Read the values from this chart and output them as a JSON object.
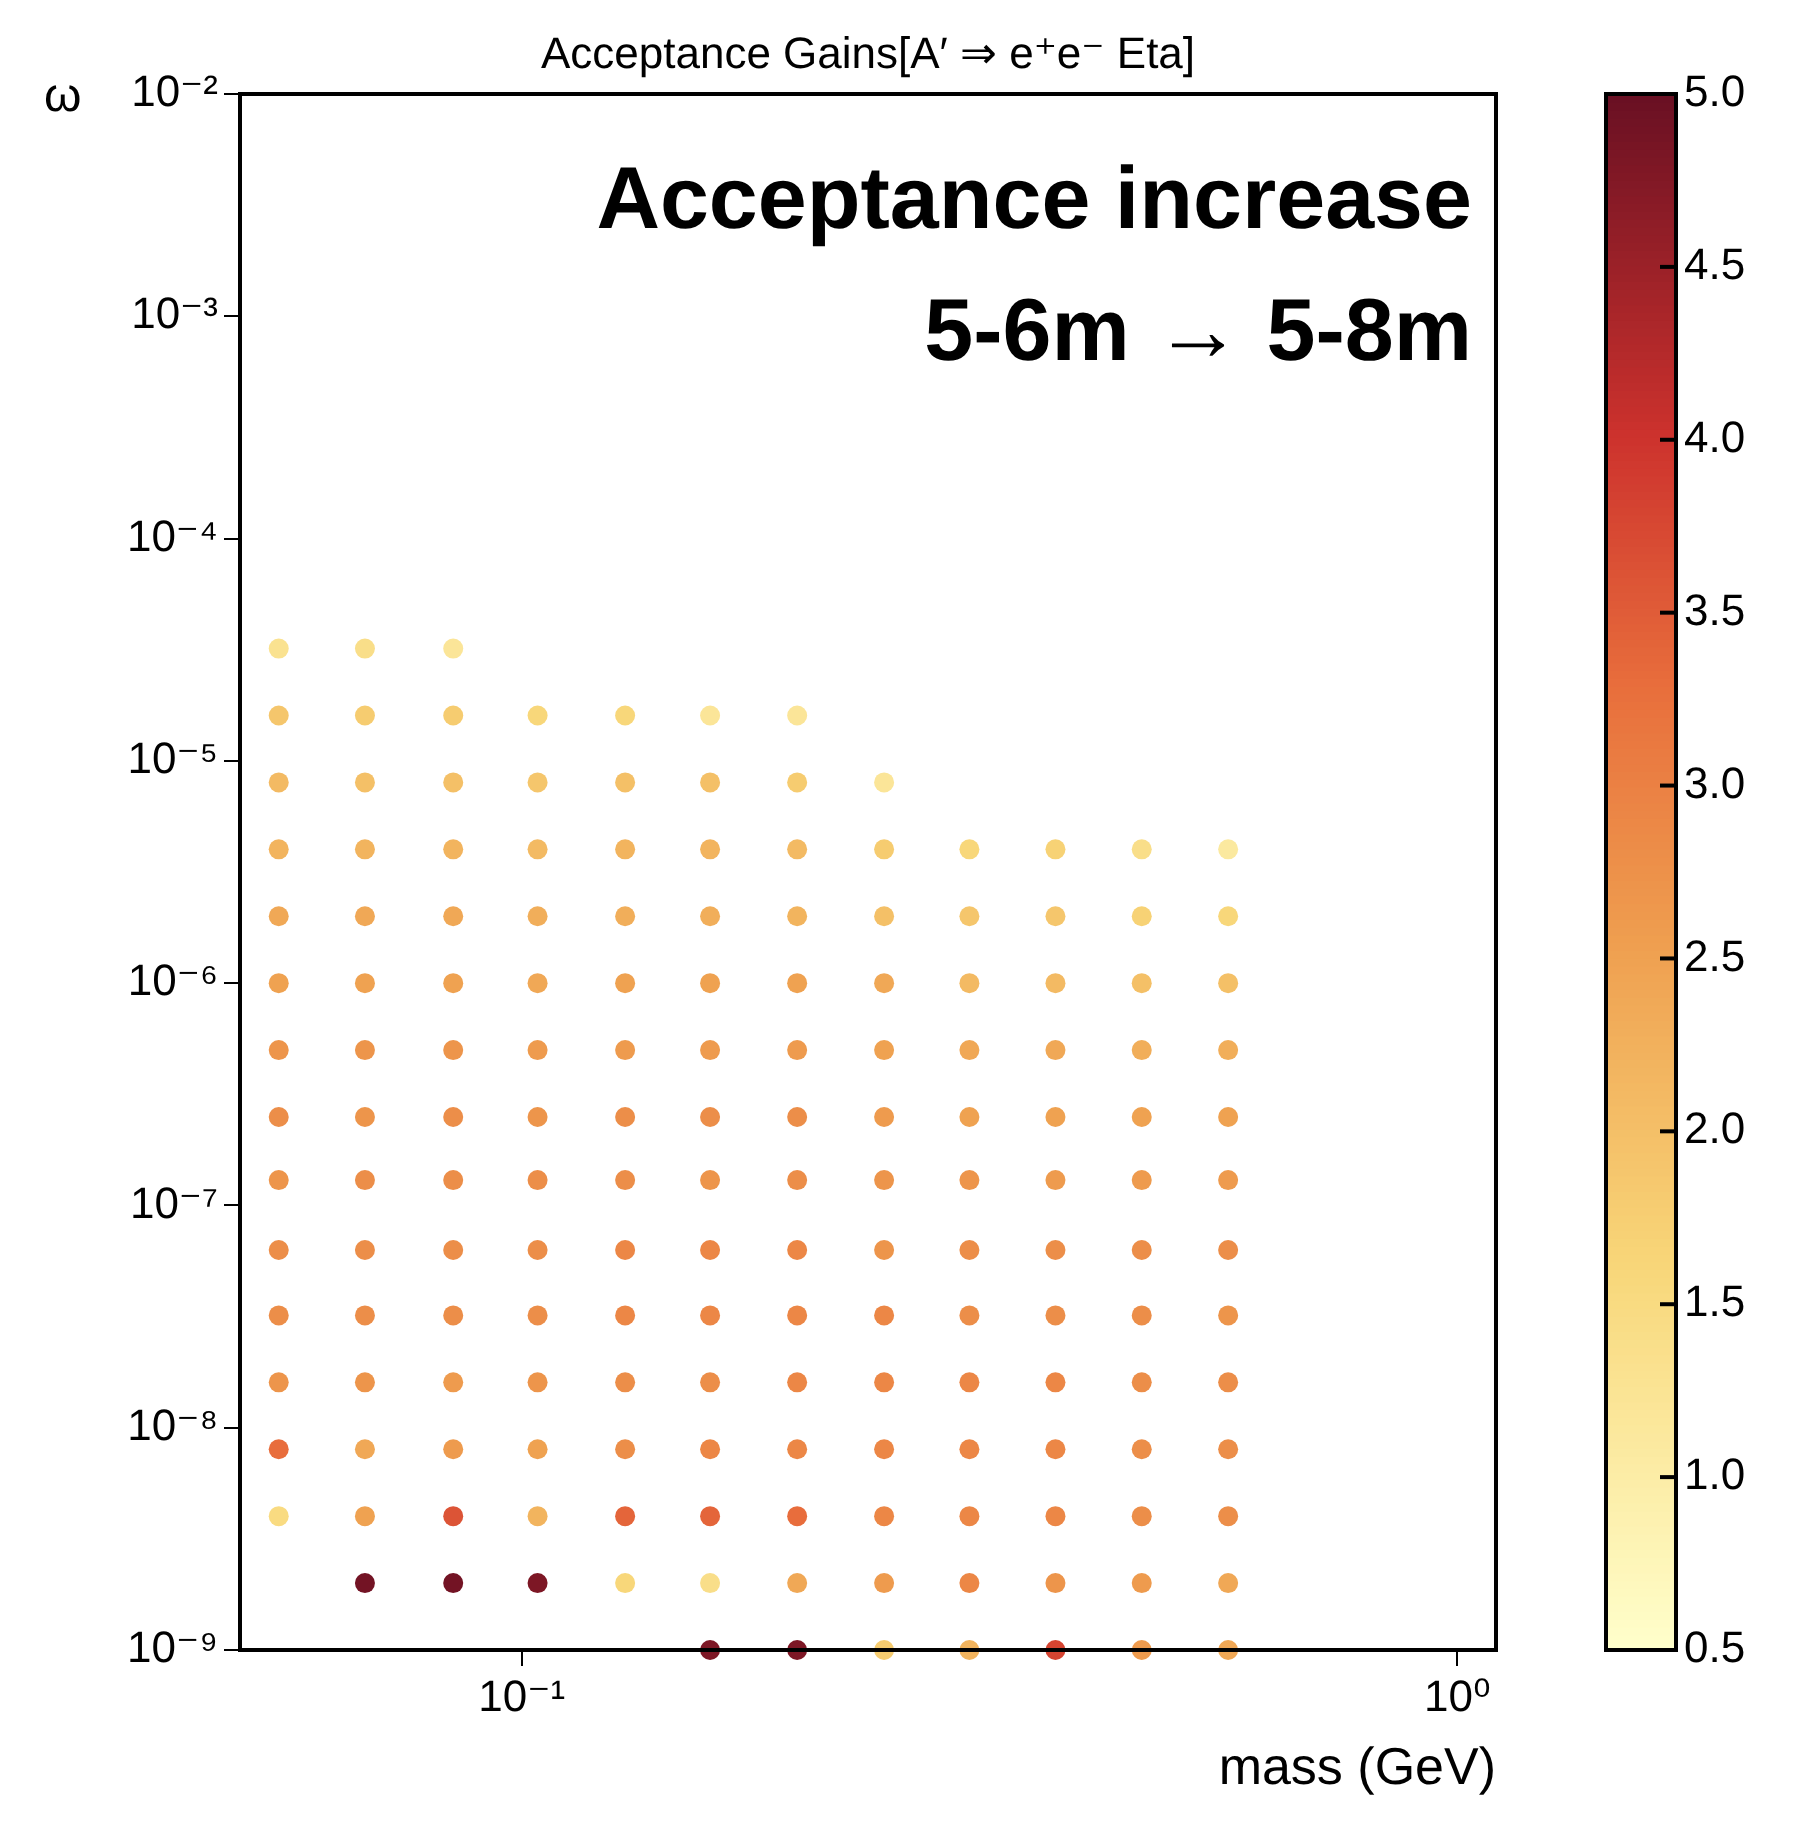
{
  "chart_data": {
    "type": "scatter",
    "title": "Acceptance Gains[A′ ⇒ e⁺e⁻ Eta]",
    "xlabel": "mass (GeV)",
    "ylabel": "ω",
    "annotations": [
      "Acceptance increase",
      "5-6m → 5-8m"
    ],
    "log": "xy",
    "marker": "circle",
    "xlim": [
      0.05,
      1.1
    ],
    "ylim": [
      1e-09,
      0.01
    ],
    "xticks": [
      {
        "value": 0.1,
        "label": "10⁻¹"
      },
      {
        "value": 1,
        "label": "10⁰"
      }
    ],
    "yticks": [
      {
        "value": 1e-09,
        "label": "10⁻⁹"
      },
      {
        "value": 1e-08,
        "label": "10⁻⁸"
      },
      {
        "value": 1e-07,
        "label": "10⁻⁷"
      },
      {
        "value": 1e-06,
        "label": "10⁻⁶"
      },
      {
        "value": 1e-05,
        "label": "10⁻⁵"
      },
      {
        "value": 0.0001,
        "label": "10⁻⁴"
      },
      {
        "value": 0.001,
        "label": "10⁻³"
      },
      {
        "value": 0.01,
        "label": "10⁻²"
      }
    ],
    "clim": [
      0.5,
      5
    ],
    "cticks": [
      {
        "value": 0.5,
        "label": "0.5"
      },
      {
        "value": 1,
        "label": "1.0"
      },
      {
        "value": 1.5,
        "label": "1.5"
      },
      {
        "value": 2,
        "label": "2.0"
      },
      {
        "value": 2.5,
        "label": "2.5"
      },
      {
        "value": 3,
        "label": "3.0"
      },
      {
        "value": 3.5,
        "label": "3.5"
      },
      {
        "value": 4,
        "label": "4.0"
      },
      {
        "value": 4.5,
        "label": "4.5"
      },
      {
        "value": 5,
        "label": "5.0"
      }
    ],
    "series": [
      {
        "x": [
          0.055,
          0.055,
          0.055,
          0.055,
          0.055,
          0.055,
          0.055,
          0.055,
          0.055,
          0.055,
          0.055,
          0.055,
          0.055,
          0.055,
          0.068,
          0.068,
          0.068,
          0.068,
          0.068,
          0.068,
          0.068,
          0.068,
          0.068,
          0.068,
          0.068,
          0.068,
          0.068,
          0.068,
          0.068,
          0.0845,
          0.0845,
          0.0845,
          0.0845,
          0.0845,
          0.0845,
          0.0845,
          0.0845,
          0.0845,
          0.0845,
          0.0845,
          0.0845,
          0.0845,
          0.0845,
          0.0845,
          0.104,
          0.104,
          0.104,
          0.104,
          0.104,
          0.104,
          0.104,
          0.104,
          0.104,
          0.104,
          0.104,
          0.104,
          0.104,
          0.104,
          0.129,
          0.129,
          0.129,
          0.129,
          0.129,
          0.129,
          0.129,
          0.129,
          0.129,
          0.129,
          0.129,
          0.129,
          0.129,
          0.129,
          0.159,
          0.159,
          0.159,
          0.159,
          0.159,
          0.159,
          0.159,
          0.159,
          0.159,
          0.159,
          0.159,
          0.159,
          0.159,
          0.159,
          0.159,
          0.197,
          0.197,
          0.197,
          0.197,
          0.197,
          0.197,
          0.197,
          0.197,
          0.197,
          0.197,
          0.197,
          0.197,
          0.197,
          0.197,
          0.197,
          0.244,
          0.244,
          0.244,
          0.244,
          0.244,
          0.244,
          0.244,
          0.244,
          0.244,
          0.244,
          0.244,
          0.244,
          0.244,
          0.244,
          0.301,
          0.301,
          0.301,
          0.301,
          0.301,
          0.301,
          0.301,
          0.301,
          0.301,
          0.301,
          0.301,
          0.301,
          0.301,
          0.372,
          0.372,
          0.372,
          0.372,
          0.372,
          0.372,
          0.372,
          0.372,
          0.372,
          0.372,
          0.372,
          0.372,
          0.372,
          0.46,
          0.46,
          0.46,
          0.46,
          0.46,
          0.46,
          0.46,
          0.46,
          0.46,
          0.46,
          0.46,
          0.46,
          0.46,
          0.569,
          0.569,
          0.569,
          0.569,
          0.569,
          0.569,
          0.569,
          0.569,
          0.569,
          0.569,
          0.569,
          0.569,
          0.569
        ],
        "values": [
          4e-09,
          8e-09,
          1.6e-08,
          3.2e-08,
          6.3e-08,
          1.3e-07,
          2.5e-07,
          5e-07,
          1e-06,
          2e-06,
          4e-06,
          8e-06,
          1.6e-05,
          3.2e-05,
          2e-09,
          4e-09,
          8e-09,
          1.6e-08,
          3.2e-08,
          6.3e-08,
          1.3e-07,
          2.5e-07,
          5e-07,
          1e-06,
          2e-06,
          4e-06,
          8e-06,
          1.6e-05,
          3.2e-05,
          2e-09,
          4e-09,
          8e-09,
          1.6e-08,
          3.2e-08,
          6.3e-08,
          1.3e-07,
          2.5e-07,
          5e-07,
          1e-06,
          2e-06,
          4e-06,
          8e-06,
          1.6e-05,
          3.2e-05,
          2e-09,
          4e-09,
          8e-09,
          1.6e-08,
          3.2e-08,
          6.3e-08,
          1.3e-07,
          2.5e-07,
          5e-07,
          1e-06,
          2e-06,
          4e-06,
          8e-06,
          1.6e-05,
          2e-09,
          4e-09,
          8e-09,
          1.6e-08,
          3.2e-08,
          6.3e-08,
          1.3e-07,
          2.5e-07,
          5e-07,
          1e-06,
          2e-06,
          4e-06,
          8e-06,
          1.6e-05,
          1e-09,
          2e-09,
          4e-09,
          8e-09,
          1.6e-08,
          3.2e-08,
          6.3e-08,
          1.3e-07,
          2.5e-07,
          5e-07,
          1e-06,
          2e-06,
          4e-06,
          8e-06,
          1.6e-05,
          1e-09,
          2e-09,
          4e-09,
          8e-09,
          1.6e-08,
          3.2e-08,
          6.3e-08,
          1.3e-07,
          2.5e-07,
          5e-07,
          1e-06,
          2e-06,
          4e-06,
          8e-06,
          1.6e-05,
          1e-09,
          2e-09,
          4e-09,
          8e-09,
          1.6e-08,
          3.2e-08,
          6.3e-08,
          1.3e-07,
          2.5e-07,
          5e-07,
          1e-06,
          2e-06,
          4e-06,
          8e-06,
          1e-09,
          2e-09,
          4e-09,
          8e-09,
          1.6e-08,
          3.2e-08,
          6.3e-08,
          1.3e-07,
          2.5e-07,
          5e-07,
          1e-06,
          2e-06,
          4e-06,
          1e-09,
          2e-09,
          4e-09,
          8e-09,
          1.6e-08,
          3.2e-08,
          6.3e-08,
          1.3e-07,
          2.5e-07,
          5e-07,
          1e-06,
          2e-06,
          4e-06,
          1e-09,
          2e-09,
          4e-09,
          8e-09,
          1.6e-08,
          3.2e-08,
          6.3e-08,
          1.3e-07,
          2.5e-07,
          5e-07,
          1e-06,
          2e-06,
          4e-06,
          1e-09,
          2e-09,
          4e-09,
          8e-09,
          1.6e-08,
          3.2e-08,
          6.3e-08,
          1.3e-07,
          2.5e-07,
          5e-07,
          1e-06,
          2e-06,
          4e-06
        ],
        "cvalues": [
          1.5,
          3.3,
          2.7,
          2.8,
          2.8,
          2.7,
          2.8,
          2.7,
          2.5,
          2.4,
          2.2,
          2.1,
          1.9,
          1.3,
          4.9,
          2.5,
          2.4,
          2.7,
          2.8,
          2.8,
          2.8,
          2.7,
          2.7,
          2.5,
          2.4,
          2.2,
          2.0,
          1.8,
          1.4,
          4.9,
          3.6,
          2.6,
          2.6,
          2.8,
          2.8,
          2.8,
          2.8,
          2.7,
          2.5,
          2.4,
          2.2,
          2.0,
          1.8,
          1.2,
          4.8,
          2.2,
          2.5,
          2.7,
          2.8,
          2.8,
          2.8,
          2.7,
          2.6,
          2.4,
          2.3,
          2.1,
          1.9,
          1.6,
          1.6,
          3.4,
          2.8,
          2.8,
          2.9,
          2.9,
          2.8,
          2.8,
          2.6,
          2.5,
          2.3,
          2.2,
          2.0,
          1.6,
          4.8,
          1.4,
          3.4,
          2.9,
          2.8,
          2.9,
          2.9,
          2.7,
          2.8,
          2.6,
          2.5,
          2.3,
          2.2,
          2.0,
          1.2,
          4.8,
          2.4,
          3.3,
          2.9,
          2.9,
          2.9,
          2.9,
          2.8,
          2.8,
          2.6,
          2.5,
          2.2,
          2.1,
          1.8,
          1.2,
          1.8,
          2.6,
          2.9,
          2.9,
          2.9,
          2.9,
          2.7,
          2.7,
          2.6,
          2.5,
          2.4,
          2.0,
          1.8,
          1.2,
          2.2,
          2.9,
          2.9,
          2.9,
          2.9,
          2.8,
          2.8,
          2.7,
          2.5,
          2.4,
          2.1,
          1.9,
          1.6,
          3.8,
          2.7,
          2.9,
          2.9,
          2.9,
          2.8,
          2.8,
          2.6,
          2.5,
          2.4,
          2.1,
          1.9,
          1.7,
          2.6,
          2.6,
          2.8,
          2.8,
          2.8,
          2.8,
          2.8,
          2.6,
          2.5,
          2.3,
          2.0,
          1.7,
          1.4,
          2.4,
          2.4,
          2.8,
          2.8,
          2.8,
          2.7,
          2.8,
          2.6,
          2.5,
          2.3,
          2.0,
          1.6,
          1.1
        ]
      }
    ]
  }
}
